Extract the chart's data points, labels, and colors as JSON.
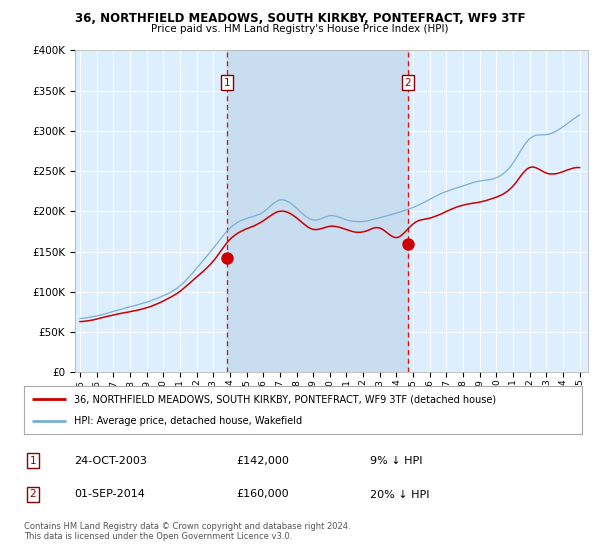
{
  "title1": "36, NORTHFIELD MEADOWS, SOUTH KIRKBY, PONTEFRACT, WF9 3TF",
  "title2": "Price paid vs. HM Land Registry's House Price Index (HPI)",
  "legend1": "36, NORTHFIELD MEADOWS, SOUTH KIRKBY, PONTEFRACT, WF9 3TF (detached house)",
  "legend2": "HPI: Average price, detached house, Wakefield",
  "footer": "Contains HM Land Registry data © Crown copyright and database right 2024.\nThis data is licensed under the Open Government Licence v3.0.",
  "sale1_date": "24-OCT-2003",
  "sale1_price": "£142,000",
  "sale1_hpi": "9% ↓ HPI",
  "sale2_date": "01-SEP-2014",
  "sale2_price": "£160,000",
  "sale2_hpi": "20% ↓ HPI",
  "sale1_x": 2003.81,
  "sale1_y": 142000,
  "sale2_x": 2014.67,
  "sale2_y": 160000,
  "ylim": [
    0,
    400000
  ],
  "xlim": [
    1994.7,
    2025.5
  ],
  "bg_color": "#ddeeff",
  "shade_color": "#c8ddf0",
  "red_color": "#cc0000",
  "blue_color": "#7aafd4"
}
